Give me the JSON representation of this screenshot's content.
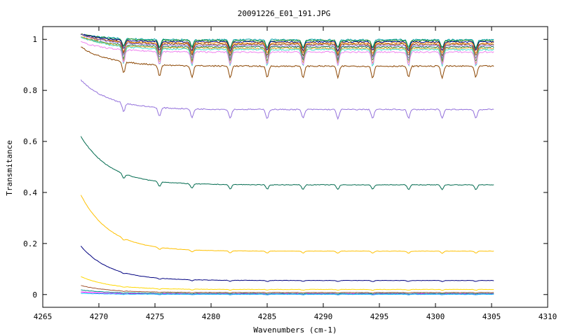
{
  "chart_data": {
    "type": "line",
    "title": "20091226_E01_191.JPG",
    "xlabel": "Wavenumbers (cm-1)",
    "ylabel": "Transmitance",
    "xlim": [
      4265,
      4310
    ],
    "ylim": [
      -0.05,
      1.05
    ],
    "xticks": [
      "4265",
      "4270",
      "4275",
      "4280",
      "4285",
      "4290",
      "4295",
      "4300",
      "4305",
      "4310"
    ],
    "yticks": [
      "0",
      "0.2",
      "0.4",
      "0.6",
      "0.8",
      "1"
    ],
    "grid": false,
    "legend": "none",
    "x_start": 4268.4,
    "x_end": 4305.2,
    "absorption_lines": [
      4272.2,
      4275.4,
      4278.3,
      4281.7,
      4285.0,
      4288.2,
      4291.3,
      4294.4,
      4297.6,
      4300.6,
      4303.6
    ],
    "series": [
      {
        "color": "#00a0a0",
        "start": 1.02,
        "level": 0.998,
        "dip": 0.03
      },
      {
        "color": "#228b22",
        "start": 1.02,
        "level": 0.995,
        "dip": 0.03
      },
      {
        "color": "#00008b",
        "start": 1.02,
        "level": 0.99,
        "dip": 0.035
      },
      {
        "color": "#ff8c00",
        "start": 1.01,
        "level": 0.985,
        "dip": 0.04
      },
      {
        "color": "#8b4513",
        "start": 1.02,
        "level": 0.98,
        "dip": 0.045
      },
      {
        "color": "#9370db",
        "start": 1.02,
        "level": 0.975,
        "dip": 0.05
      },
      {
        "color": "#2e8b57",
        "start": 1.01,
        "level": 0.97,
        "dip": 0.055
      },
      {
        "color": "#daa520",
        "start": 1.01,
        "level": 0.965,
        "dip": 0.06
      },
      {
        "color": "#40e0d0",
        "start": 1.01,
        "level": 0.96,
        "dip": 0.065
      },
      {
        "color": "#ee82ee",
        "start": 0.99,
        "level": 0.95,
        "dip": 0.05
      },
      {
        "color": "#8b4500",
        "start": 0.97,
        "level": 0.895,
        "dip": 0.045
      },
      {
        "color": "#9370db",
        "start": 0.84,
        "level": 0.725,
        "dip": 0.035
      },
      {
        "color": "#006a4e",
        "start": 0.62,
        "level": 0.43,
        "dip": 0.018
      },
      {
        "color": "#ffc000",
        "start": 0.39,
        "level": 0.17,
        "dip": 0.008
      },
      {
        "color": "#000080",
        "start": 0.19,
        "level": 0.055,
        "dip": 0.004
      },
      {
        "color": "#ffd700",
        "start": 0.07,
        "level": 0.02,
        "dip": 0.003
      },
      {
        "color": "#a0522d",
        "start": 0.035,
        "level": 0.008,
        "dip": 0.002
      },
      {
        "color": "#008b8b",
        "start": 0.018,
        "level": 0.004,
        "dip": 0.002
      },
      {
        "color": "#ff00ff",
        "start": 0.01,
        "level": 0.002,
        "dip": 0.003
      },
      {
        "color": "#00bfff",
        "start": 0.005,
        "level": 0.001,
        "dip": 0.002
      }
    ]
  }
}
